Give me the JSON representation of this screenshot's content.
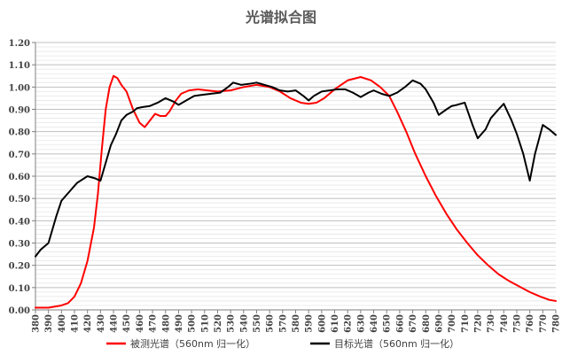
{
  "chart_data": {
    "type": "line",
    "title": "光谱拟合图",
    "xlabel": "",
    "ylabel": "",
    "xlim": [
      380,
      780
    ],
    "ylim": [
      0,
      1.2
    ],
    "x_ticks": [
      "380",
      "390",
      "400",
      "410",
      "420",
      "430",
      "440",
      "450",
      "460",
      "470",
      "480",
      "490",
      "500",
      "510",
      "520",
      "530",
      "540",
      "550",
      "560",
      "570",
      "580",
      "590",
      "600",
      "610",
      "620",
      "630",
      "640",
      "650",
      "660",
      "670",
      "680",
      "690",
      "700",
      "710",
      "720",
      "730",
      "740",
      "750",
      "760",
      "770",
      "780"
    ],
    "y_ticks": [
      "0.00",
      "0.10",
      "0.20",
      "0.30",
      "0.40",
      "0.50",
      "0.60",
      "0.70",
      "0.80",
      "0.90",
      "1.00",
      "1.10",
      "1.20"
    ],
    "grid": true,
    "legend_position": "bottom",
    "series": [
      {
        "name": "被测光谱（560nm 归一化）",
        "color": "#ff0000",
        "points": [
          [
            380,
            0.01
          ],
          [
            390,
            0.01
          ],
          [
            395,
            0.015
          ],
          [
            400,
            0.02
          ],
          [
            405,
            0.03
          ],
          [
            410,
            0.06
          ],
          [
            415,
            0.12
          ],
          [
            420,
            0.22
          ],
          [
            425,
            0.37
          ],
          [
            428,
            0.52
          ],
          [
            431,
            0.72
          ],
          [
            434,
            0.9
          ],
          [
            437,
            1.0
          ],
          [
            440,
            1.05
          ],
          [
            443,
            1.04
          ],
          [
            446,
            1.01
          ],
          [
            450,
            0.98
          ],
          [
            455,
            0.9
          ],
          [
            460,
            0.84
          ],
          [
            464,
            0.82
          ],
          [
            468,
            0.85
          ],
          [
            472,
            0.88
          ],
          [
            476,
            0.87
          ],
          [
            480,
            0.87
          ],
          [
            483,
            0.89
          ],
          [
            488,
            0.94
          ],
          [
            492,
            0.97
          ],
          [
            498,
            0.985
          ],
          [
            505,
            0.99
          ],
          [
            512,
            0.985
          ],
          [
            520,
            0.98
          ],
          [
            530,
            0.985
          ],
          [
            540,
            1.0
          ],
          [
            550,
            1.01
          ],
          [
            560,
            1.0
          ],
          [
            568,
            0.98
          ],
          [
            576,
            0.95
          ],
          [
            584,
            0.93
          ],
          [
            590,
            0.925
          ],
          [
            596,
            0.93
          ],
          [
            602,
            0.95
          ],
          [
            610,
            0.99
          ],
          [
            620,
            1.03
          ],
          [
            630,
            1.045
          ],
          [
            638,
            1.03
          ],
          [
            645,
            1.0
          ],
          [
            652,
            0.96
          ],
          [
            658,
            0.89
          ],
          [
            665,
            0.8
          ],
          [
            672,
            0.7
          ],
          [
            680,
            0.6
          ],
          [
            688,
            0.51
          ],
          [
            696,
            0.43
          ],
          [
            704,
            0.36
          ],
          [
            712,
            0.3
          ],
          [
            720,
            0.245
          ],
          [
            728,
            0.2
          ],
          [
            736,
            0.16
          ],
          [
            744,
            0.13
          ],
          [
            752,
            0.105
          ],
          [
            760,
            0.08
          ],
          [
            768,
            0.06
          ],
          [
            775,
            0.045
          ],
          [
            780,
            0.04
          ]
        ]
      },
      {
        "name": "目标光谱（560nm 归一化）",
        "color": "#000000",
        "points": [
          [
            380,
            0.24
          ],
          [
            384,
            0.27
          ],
          [
            390,
            0.3
          ],
          [
            396,
            0.42
          ],
          [
            400,
            0.49
          ],
          [
            406,
            0.53
          ],
          [
            412,
            0.57
          ],
          [
            420,
            0.6
          ],
          [
            426,
            0.59
          ],
          [
            430,
            0.58
          ],
          [
            434,
            0.66
          ],
          [
            438,
            0.74
          ],
          [
            442,
            0.79
          ],
          [
            446,
            0.85
          ],
          [
            450,
            0.875
          ],
          [
            455,
            0.89
          ],
          [
            458,
            0.905
          ],
          [
            462,
            0.91
          ],
          [
            468,
            0.915
          ],
          [
            474,
            0.93
          ],
          [
            480,
            0.95
          ],
          [
            486,
            0.935
          ],
          [
            490,
            0.92
          ],
          [
            496,
            0.94
          ],
          [
            502,
            0.96
          ],
          [
            508,
            0.965
          ],
          [
            515,
            0.97
          ],
          [
            522,
            0.975
          ],
          [
            528,
            1.0
          ],
          [
            532,
            1.02
          ],
          [
            538,
            1.01
          ],
          [
            545,
            1.015
          ],
          [
            550,
            1.02
          ],
          [
            556,
            1.01
          ],
          [
            562,
            1.0
          ],
          [
            568,
            0.985
          ],
          [
            574,
            0.98
          ],
          [
            580,
            0.985
          ],
          [
            586,
            0.96
          ],
          [
            590,
            0.94
          ],
          [
            594,
            0.96
          ],
          [
            600,
            0.98
          ],
          [
            606,
            0.985
          ],
          [
            612,
            0.99
          ],
          [
            618,
            0.99
          ],
          [
            624,
            0.975
          ],
          [
            630,
            0.955
          ],
          [
            636,
            0.975
          ],
          [
            640,
            0.985
          ],
          [
            646,
            0.97
          ],
          [
            652,
            0.96
          ],
          [
            658,
            0.975
          ],
          [
            664,
            1.0
          ],
          [
            670,
            1.03
          ],
          [
            676,
            1.015
          ],
          [
            680,
            0.99
          ],
          [
            686,
            0.93
          ],
          [
            690,
            0.875
          ],
          [
            696,
            0.9
          ],
          [
            700,
            0.915
          ],
          [
            704,
            0.92
          ],
          [
            710,
            0.93
          ],
          [
            716,
            0.83
          ],
          [
            720,
            0.77
          ],
          [
            726,
            0.81
          ],
          [
            730,
            0.86
          ],
          [
            736,
            0.9
          ],
          [
            740,
            0.925
          ],
          [
            746,
            0.85
          ],
          [
            750,
            0.79
          ],
          [
            755,
            0.7
          ],
          [
            760,
            0.58
          ],
          [
            764,
            0.7
          ],
          [
            770,
            0.83
          ],
          [
            775,
            0.81
          ],
          [
            780,
            0.785
          ]
        ]
      }
    ]
  }
}
